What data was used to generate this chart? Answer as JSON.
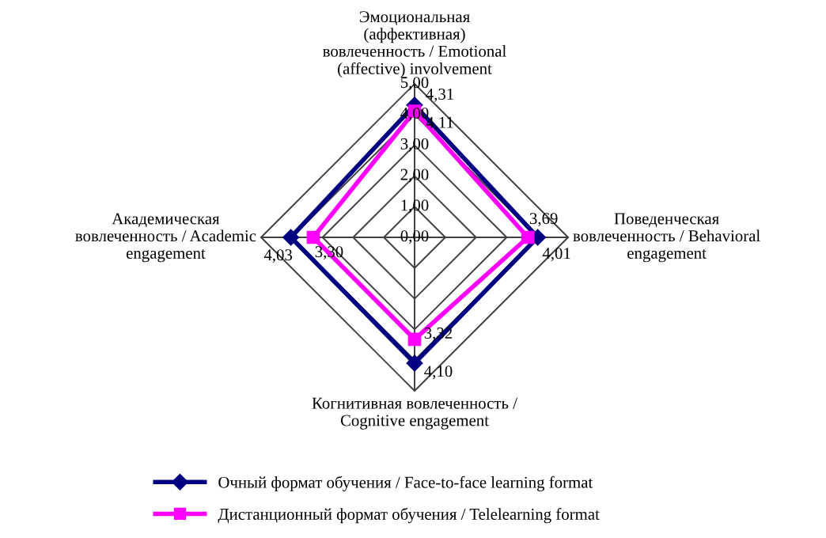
{
  "chart_data": {
    "type": "radar",
    "categories": [
      "Эмоциональная (аффективная) вовлеченность / Emotional (affective) involvement",
      "Поведенческая вовлеченность / Behavioral engagement",
      "Когнитивная вовлеченность / Cognitive engagement",
      "Академическая вовлеченность / Academic engagement"
    ],
    "series": [
      {
        "name": "Очный формат обучения / Face-to-face learning format",
        "color": "#000080",
        "marker": "diamond",
        "values": [
          4.31,
          4.01,
          4.1,
          4.03
        ],
        "value_labels": [
          "4,31",
          "4,01",
          "4,10",
          "4,03"
        ]
      },
      {
        "name": "Дистанционный формат обучения / Telelearning format",
        "color": "#ff00ff",
        "marker": "square",
        "values": [
          4.11,
          3.69,
          3.32,
          3.3
        ],
        "value_labels": [
          "4,11",
          "3,69",
          "3,32",
          "3,30"
        ]
      }
    ],
    "ylim": [
      0,
      5
    ],
    "yticks": [
      {
        "value": 0,
        "label": "0,00"
      },
      {
        "value": 1,
        "label": "1,00"
      },
      {
        "value": 2,
        "label": "2,00"
      },
      {
        "value": 3,
        "label": "3,00"
      },
      {
        "value": 4,
        "label": "4,00"
      },
      {
        "value": 5,
        "label": "5,00"
      }
    ],
    "grid": true,
    "legend": "bottom",
    "line_style": "solid"
  }
}
